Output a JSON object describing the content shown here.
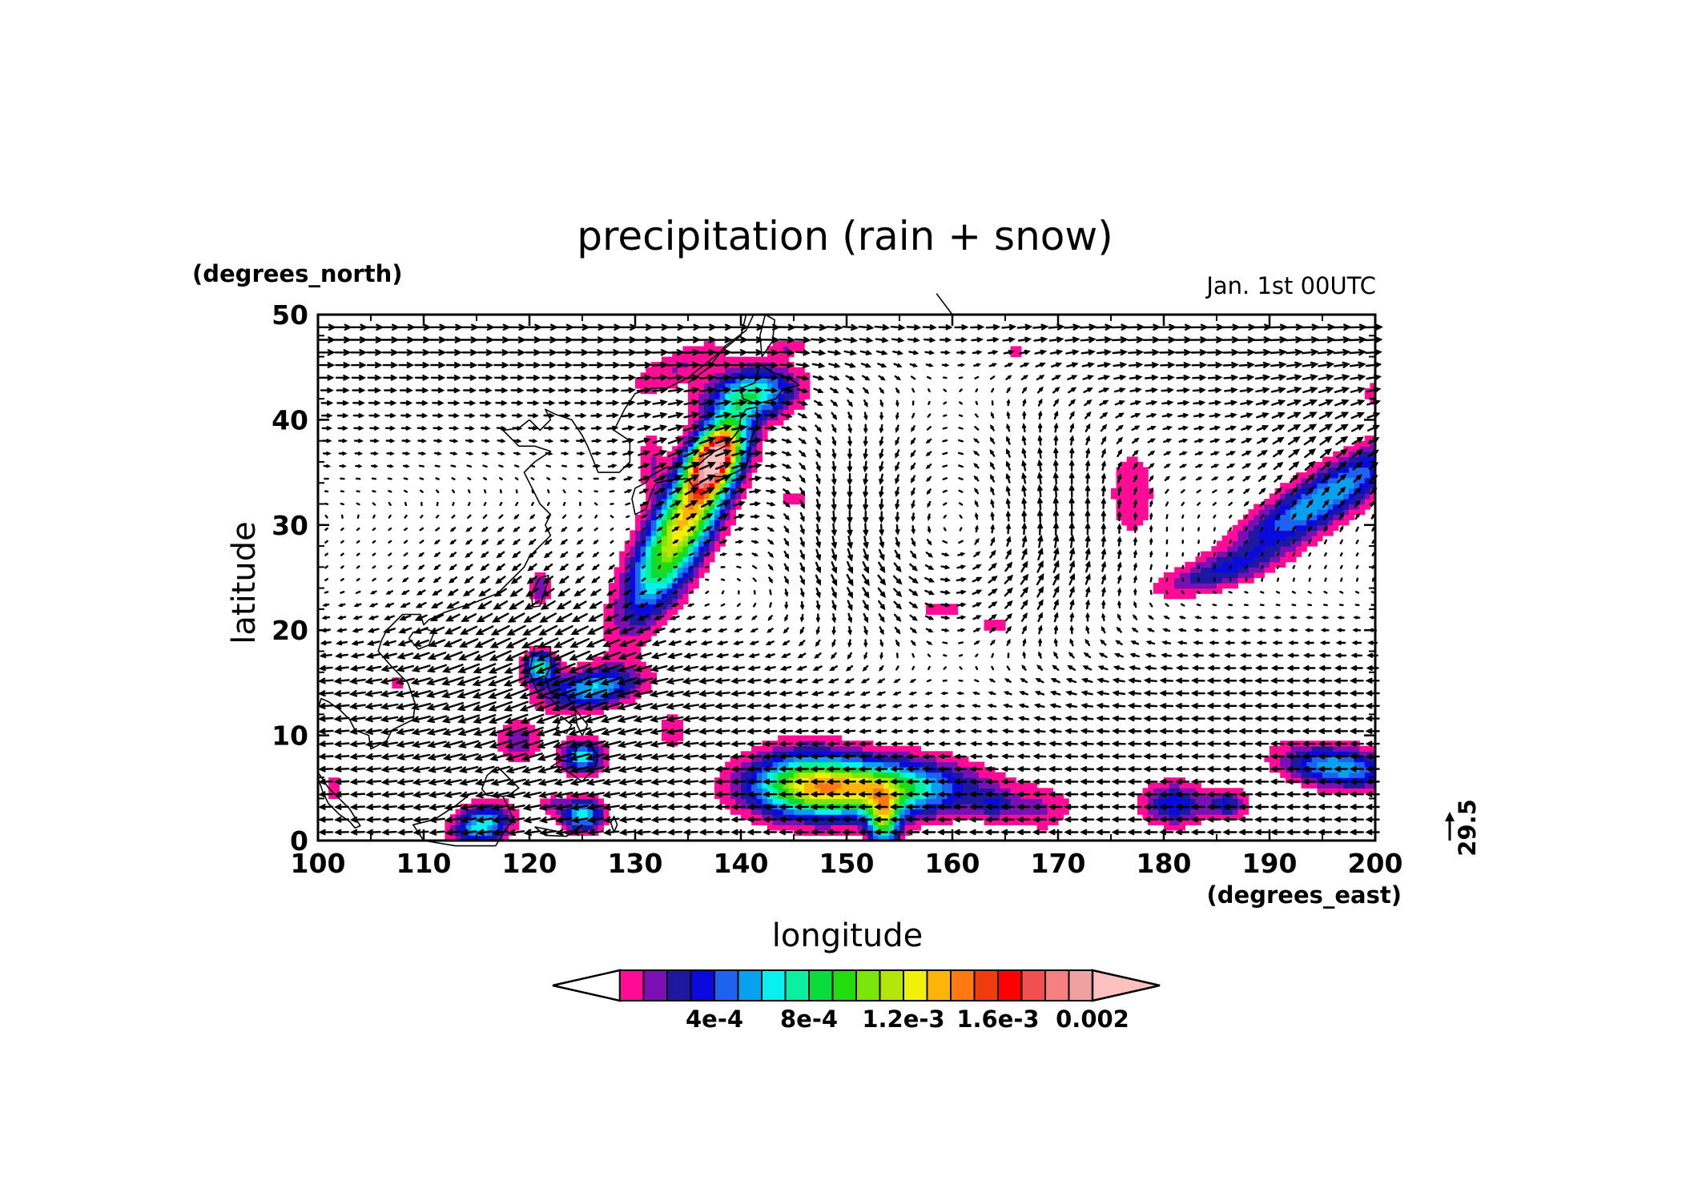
{
  "chart_data": {
    "type": "heatmap",
    "title": "precipitation (rain + snow)",
    "annotation": "Jan. 1st 00UTC",
    "xlabel": "longitude",
    "ylabel": "latitude",
    "x_units": "(degrees_east)",
    "y_units": "(degrees_north)",
    "xlim": [
      100,
      200
    ],
    "ylim": [
      0,
      50
    ],
    "x_ticks": [
      "100",
      "110",
      "120",
      "130",
      "140",
      "150",
      "160",
      "170",
      "180",
      "190",
      "200"
    ],
    "y_ticks": [
      "0",
      "10",
      "20",
      "30",
      "40",
      "50"
    ],
    "vector_reference": "29.5",
    "colorbar": {
      "tick_labels": [
        "4e-4",
        "8e-4",
        "1.2e-3",
        "1.6e-3",
        "0.002"
      ],
      "tick_values": [
        0.0004,
        0.0008,
        0.0012,
        0.0016,
        0.002
      ],
      "level_step": 0.0001,
      "colors": [
        "#ffffff",
        "#ff0c96",
        "#7a0fb4",
        "#1e18a0",
        "#0a0adc",
        "#1e62f0",
        "#0aa0f0",
        "#0af0f0",
        "#0af0a0",
        "#0adc3c",
        "#22dc0f",
        "#7ae60a",
        "#b4e60a",
        "#f0f00a",
        "#ffb40a",
        "#ff7810",
        "#f03c0a",
        "#ff0000",
        "#f05050",
        "#f58080",
        "#f0a0a0",
        "#ffc0c0"
      ]
    },
    "precip_blobs": [
      {
        "lon": 134.5,
        "lat": 30.0,
        "ra": 6.0,
        "rb": 1.8,
        "angle": 62,
        "peak": 0.0014
      },
      {
        "lon": 137.5,
        "lat": 36.5,
        "ra": 2.5,
        "rb": 1.4,
        "angle": 60,
        "peak": 0.0017
      },
      {
        "lon": 141.0,
        "lat": 42.5,
        "ra": 2.8,
        "rb": 1.6,
        "angle": 10,
        "peak": 0.0008
      },
      {
        "lon": 134.0,
        "lat": 45.0,
        "ra": 3.8,
        "rb": 1.2,
        "angle": 25,
        "peak": 0.0002
      },
      {
        "lon": 152.0,
        "lat": 5.0,
        "ra": 6.0,
        "rb": 1.8,
        "angle": 0,
        "peak": 0.0012
      },
      {
        "lon": 146.0,
        "lat": 5.5,
        "ra": 3.5,
        "rb": 2.2,
        "angle": 0,
        "peak": 0.0007
      },
      {
        "lon": 153.5,
        "lat": 2.0,
        "ra": 1.0,
        "rb": 1.8,
        "angle": 0,
        "peak": 0.001
      },
      {
        "lon": 126.0,
        "lat": 14.5,
        "ra": 3.0,
        "rb": 1.2,
        "angle": 10,
        "peak": 0.0007
      },
      {
        "lon": 121.0,
        "lat": 16.5,
        "ra": 1.0,
        "rb": 1.0,
        "angle": 0,
        "peak": 0.0009
      },
      {
        "lon": 125.0,
        "lat": 8.0,
        "ra": 1.2,
        "rb": 1.0,
        "angle": 0,
        "peak": 0.0008
      },
      {
        "lon": 125.0,
        "lat": 2.5,
        "ra": 1.3,
        "rb": 1.0,
        "angle": 0,
        "peak": 0.0008
      },
      {
        "lon": 115.5,
        "lat": 1.5,
        "ra": 1.8,
        "rb": 1.2,
        "angle": 20,
        "peak": 0.0008
      },
      {
        "lon": 195.0,
        "lat": 32.5,
        "ra": 6.5,
        "rb": 1.6,
        "angle": 33,
        "peak": 0.0007
      },
      {
        "lon": 185.0,
        "lat": 25.5,
        "ra": 4.0,
        "rb": 1.0,
        "angle": 15,
        "peak": 0.0003
      },
      {
        "lon": 196.5,
        "lat": 7.0,
        "ra": 3.5,
        "rb": 1.3,
        "angle": -8,
        "peak": 0.0007
      },
      {
        "lon": 181.0,
        "lat": 3.5,
        "ra": 2.0,
        "rb": 1.3,
        "angle": 0,
        "peak": 0.0005
      },
      {
        "lon": 186.0,
        "lat": 3.5,
        "ra": 1.2,
        "rb": 1.0,
        "angle": 0,
        "peak": 0.0004
      },
      {
        "lon": 164.0,
        "lat": 3.5,
        "ra": 1.5,
        "rb": 1.0,
        "angle": 0,
        "peak": 0.0003
      },
      {
        "lon": 168.5,
        "lat": 3.0,
        "ra": 2.0,
        "rb": 1.5,
        "angle": 0,
        "peak": 0.0002
      },
      {
        "lon": 133.5,
        "lat": 10.5,
        "ra": 0.8,
        "rb": 1.2,
        "angle": 0,
        "peak": 0.0002
      },
      {
        "lon": 131.5,
        "lat": 36.0,
        "ra": 0.8,
        "rb": 2.0,
        "angle": 0,
        "peak": 0.0002
      },
      {
        "lon": 177.0,
        "lat": 33.0,
        "ra": 1.5,
        "rb": 2.8,
        "angle": 0,
        "peak": 0.0002
      },
      {
        "lon": 119.0,
        "lat": 9.5,
        "ra": 1.3,
        "rb": 1.3,
        "angle": 0,
        "peak": 0.0003
      },
      {
        "lon": 121.0,
        "lat": 24.0,
        "ra": 0.6,
        "rb": 1.0,
        "angle": 0,
        "peak": 0.0003
      },
      {
        "lon": 107.5,
        "lat": 15.0,
        "ra": 0.6,
        "rb": 0.6,
        "angle": 0,
        "peak": 0.0002
      },
      {
        "lon": 122.0,
        "lat": 3.5,
        "ra": 0.8,
        "rb": 0.6,
        "angle": 0,
        "peak": 0.0002
      },
      {
        "lon": 101.5,
        "lat": 5.0,
        "ra": 0.6,
        "rb": 0.8,
        "angle": 0,
        "peak": 0.0002
      },
      {
        "lon": 159.0,
        "lat": 22.0,
        "ra": 1.5,
        "rb": 0.5,
        "angle": 0,
        "peak": 0.0002
      },
      {
        "lon": 164.0,
        "lat": 20.5,
        "ra": 0.8,
        "rb": 0.4,
        "angle": 0,
        "peak": 0.0002
      },
      {
        "lon": 144.5,
        "lat": 47.0,
        "ra": 1.3,
        "rb": 0.5,
        "angle": 0,
        "peak": 0.0002
      },
      {
        "lon": 145.0,
        "lat": 32.5,
        "ra": 0.8,
        "rb": 0.6,
        "angle": 0,
        "peak": 0.0002
      },
      {
        "lon": 200.0,
        "lat": 42.5,
        "ra": 0.7,
        "rb": 0.9,
        "angle": 0,
        "peak": 0.0002
      },
      {
        "lon": 166.0,
        "lat": 46.5,
        "ra": 0.5,
        "rb": 0.4,
        "angle": 0,
        "peak": 0.0002
      }
    ],
    "vector_grid": {
      "lon_step": 1.5,
      "lat_step": 1.2
    }
  }
}
